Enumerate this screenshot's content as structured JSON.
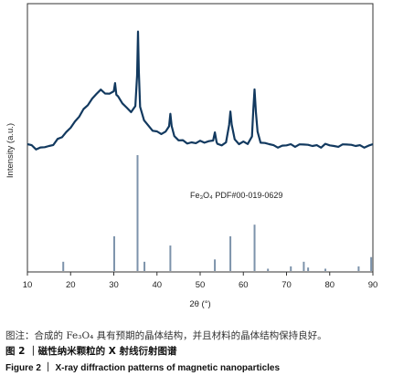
{
  "chart_data": {
    "type": "line",
    "xlabel": "2θ (°)",
    "ylabel": "Intensity (a.u.)",
    "xlim": [
      10,
      90
    ],
    "xticks": [
      "10",
      "20",
      "30",
      "40",
      "50",
      "60",
      "70",
      "80",
      "90"
    ],
    "grid": false,
    "measured_pattern": {
      "color": "#12395f",
      "points": [
        [
          10,
          0.44
        ],
        [
          11,
          0.43
        ],
        [
          12,
          0.42
        ],
        [
          13,
          0.42
        ],
        [
          14,
          0.43
        ],
        [
          15,
          0.43
        ],
        [
          16,
          0.44
        ],
        [
          17,
          0.46
        ],
        [
          18,
          0.48
        ],
        [
          19,
          0.5
        ],
        [
          20,
          0.53
        ],
        [
          21,
          0.56
        ],
        [
          22,
          0.6
        ],
        [
          23,
          0.63
        ],
        [
          24,
          0.66
        ],
        [
          25,
          0.69
        ],
        [
          26,
          0.72
        ],
        [
          27,
          0.73
        ],
        [
          28,
          0.72
        ],
        [
          29,
          0.71
        ],
        [
          30,
          0.73
        ],
        [
          30.3,
          0.77
        ],
        [
          30.6,
          0.72
        ],
        [
          31,
          0.7
        ],
        [
          32,
          0.67
        ],
        [
          33,
          0.64
        ],
        [
          34,
          0.62
        ],
        [
          35,
          0.64
        ],
        [
          35.4,
          0.82
        ],
        [
          35.6,
          1.05
        ],
        [
          35.8,
          0.84
        ],
        [
          36.1,
          0.64
        ],
        [
          37,
          0.58
        ],
        [
          38,
          0.54
        ],
        [
          39,
          0.52
        ],
        [
          40,
          0.51
        ],
        [
          41,
          0.5
        ],
        [
          42,
          0.5
        ],
        [
          42.8,
          0.54
        ],
        [
          43.1,
          0.6
        ],
        [
          43.4,
          0.54
        ],
        [
          44,
          0.48
        ],
        [
          45,
          0.47
        ],
        [
          46,
          0.46
        ],
        [
          47,
          0.45
        ],
        [
          48,
          0.45
        ],
        [
          49,
          0.45
        ],
        [
          50,
          0.45
        ],
        [
          51,
          0.45
        ],
        [
          52,
          0.45
        ],
        [
          53,
          0.46
        ],
        [
          53.4,
          0.5
        ],
        [
          53.8,
          0.46
        ],
        [
          54,
          0.44
        ],
        [
          55,
          0.44
        ],
        [
          56,
          0.45
        ],
        [
          56.7,
          0.55
        ],
        [
          57.0,
          0.61
        ],
        [
          57.3,
          0.55
        ],
        [
          58,
          0.46
        ],
        [
          59,
          0.44
        ],
        [
          60,
          0.45
        ],
        [
          61,
          0.45
        ],
        [
          62,
          0.48
        ],
        [
          62.3,
          0.63
        ],
        [
          62.6,
          0.74
        ],
        [
          62.9,
          0.62
        ],
        [
          63.3,
          0.5
        ],
        [
          64,
          0.45
        ],
        [
          65,
          0.44
        ],
        [
          66,
          0.44
        ],
        [
          67,
          0.43
        ],
        [
          68,
          0.43
        ],
        [
          69,
          0.43
        ],
        [
          70,
          0.44
        ],
        [
          71,
          0.44
        ],
        [
          72,
          0.43
        ],
        [
          73,
          0.43
        ],
        [
          74,
          0.44
        ],
        [
          75,
          0.43
        ],
        [
          76,
          0.43
        ],
        [
          77,
          0.43
        ],
        [
          78,
          0.43
        ],
        [
          79,
          0.44
        ],
        [
          80,
          0.44
        ],
        [
          81,
          0.43
        ],
        [
          82,
          0.43
        ],
        [
          83,
          0.43
        ],
        [
          84,
          0.44
        ],
        [
          85,
          0.43
        ],
        [
          86,
          0.43
        ],
        [
          87,
          0.43
        ],
        [
          88,
          0.43
        ],
        [
          89,
          0.43
        ],
        [
          90,
          0.44
        ]
      ]
    },
    "reference_pattern": {
      "label": "Fe₃O₄ PDF#00-019-0629",
      "color": "#7d93ab",
      "lines": [
        [
          18.3,
          0.08
        ],
        [
          30.1,
          0.3
        ],
        [
          35.5,
          1.0
        ],
        [
          37.1,
          0.08
        ],
        [
          43.1,
          0.22
        ],
        [
          53.4,
          0.1
        ],
        [
          57.0,
          0.3
        ],
        [
          62.6,
          0.4
        ],
        [
          65.7,
          0.02
        ],
        [
          71.0,
          0.04
        ],
        [
          74.0,
          0.08
        ],
        [
          75.0,
          0.03
        ],
        [
          79.0,
          0.02
        ],
        [
          86.7,
          0.04
        ],
        [
          89.6,
          0.12
        ]
      ]
    }
  },
  "captions": {
    "note": "图注：合成的 Fe₃O₄ 具有预期的晶体结构，并且材料的晶体结构保持良好。",
    "cn_title": "图 2 ｜磁性纳米颗粒的 X 射线衍射图谱",
    "en_title": "Figure 2 ｜ X-ray diffraction patterns of magnetic nanoparticles"
  }
}
